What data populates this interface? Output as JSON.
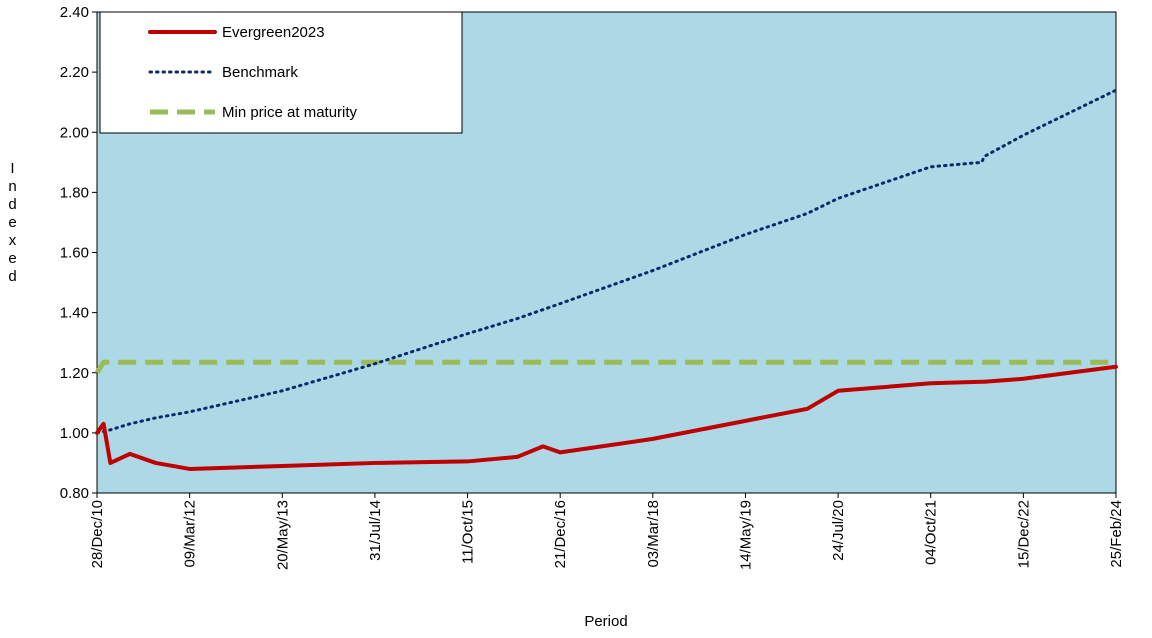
{
  "chart_data": {
    "type": "line",
    "y_label": "Indexed",
    "x_label": "Period",
    "x": [
      "28/Dec/10",
      "28/Jan/11",
      "01/Mar/11",
      "01/Jun/11",
      "01/Oct/11",
      "09/Mar/12",
      "20/May/13",
      "31/Jul/14",
      "11/Oct/15",
      "01/Jun/16",
      "01/Oct/16",
      "21/Dec/16",
      "03/Mar/18",
      "14/May/19",
      "01/Mar/20",
      "24/Jul/20",
      "04/Oct/21",
      "01/Jun/22",
      "15/Jun/22",
      "15/Dec/22",
      "25/Feb/24"
    ],
    "series": [
      {
        "name": "Evergreen2023",
        "color": "#c00000",
        "style": "solid",
        "values": [
          1.0,
          1.03,
          0.9,
          0.93,
          0.9,
          0.88,
          0.89,
          0.9,
          0.905,
          0.92,
          0.955,
          0.935,
          0.98,
          1.04,
          1.08,
          1.14,
          1.165,
          1.17,
          1.17,
          1.18,
          1.22
        ]
      },
      {
        "name": "Benchmark",
        "color": "#0b2a6b",
        "style": "dotted",
        "values": [
          1.0,
          1.005,
          1.01,
          1.03,
          1.05,
          1.07,
          1.14,
          1.23,
          1.33,
          1.38,
          1.41,
          1.43,
          1.54,
          1.66,
          1.73,
          1.78,
          1.885,
          1.9,
          1.92,
          1.99,
          2.14
        ]
      },
      {
        "name": "Min price at maturity",
        "color": "#9bbb59",
        "style": "dashed",
        "values": [
          1.2,
          1.235,
          1.235,
          1.235,
          1.235,
          1.235,
          1.235,
          1.235,
          1.235,
          1.235,
          1.235,
          1.235,
          1.235,
          1.235,
          1.235,
          1.235,
          1.235,
          1.235,
          1.235,
          1.235,
          1.235
        ]
      }
    ],
    "xlim": [
      "28/Dec/10",
      "25/Feb/24"
    ],
    "xticks": [
      "28/Dec/10",
      "09/Mar/12",
      "20/May/13",
      "31/Jul/14",
      "11/Oct/15",
      "21/Dec/16",
      "03/Mar/18",
      "14/May/19",
      "24/Jul/20",
      "04/Oct/21",
      "15/Dec/22",
      "25/Feb/24"
    ],
    "ylim": [
      0.8,
      2.4
    ],
    "yticks": [
      {
        "value": 0.8,
        "label": "0.80"
      },
      {
        "value": 1.0,
        "label": "1.00"
      },
      {
        "value": 1.2,
        "label": "1.20"
      },
      {
        "value": 1.4,
        "label": "1.40"
      },
      {
        "value": 1.6,
        "label": "1.60"
      },
      {
        "value": 1.8,
        "label": "1.80"
      },
      {
        "value": 2.0,
        "label": "2.00"
      },
      {
        "value": 2.2,
        "label": "2.20"
      },
      {
        "value": 2.4,
        "label": "2.40"
      }
    ],
    "background": "#add8e6",
    "legend": "upper-left"
  }
}
